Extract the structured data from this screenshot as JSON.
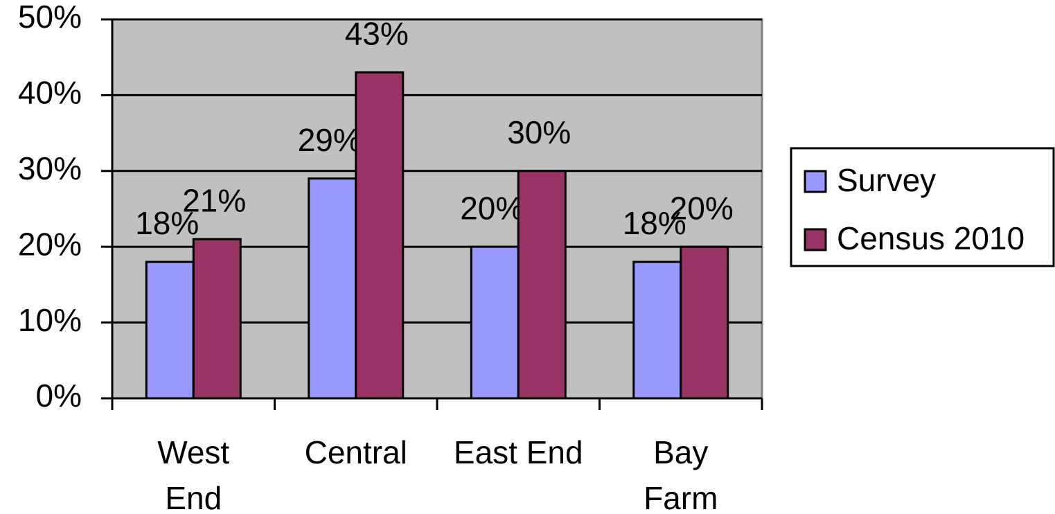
{
  "chart_data": {
    "type": "bar",
    "categories": [
      "West End",
      "Central",
      "East End",
      "Bay Farm"
    ],
    "series": [
      {
        "name": "Survey",
        "color": "#9999ff",
        "values": [
          18,
          29,
          20,
          18
        ],
        "value_labels": [
          "18%",
          "29%",
          "20%",
          "18%"
        ]
      },
      {
        "name": "Census 2010",
        "color": "#993366",
        "values": [
          21,
          43,
          30,
          20
        ],
        "value_labels": [
          "21%",
          "43%",
          "30%",
          "20%"
        ]
      }
    ],
    "ylim": [
      0,
      50
    ],
    "yticks": [
      {
        "value": 0,
        "label": "0%"
      },
      {
        "value": 10,
        "label": "10%"
      },
      {
        "value": 20,
        "label": "20%"
      },
      {
        "value": 30,
        "label": "30%"
      },
      {
        "value": 40,
        "label": "40%"
      },
      {
        "value": 50,
        "label": "50%"
      }
    ],
    "grid": true,
    "legend": "right",
    "background": "#c0c0c0"
  }
}
